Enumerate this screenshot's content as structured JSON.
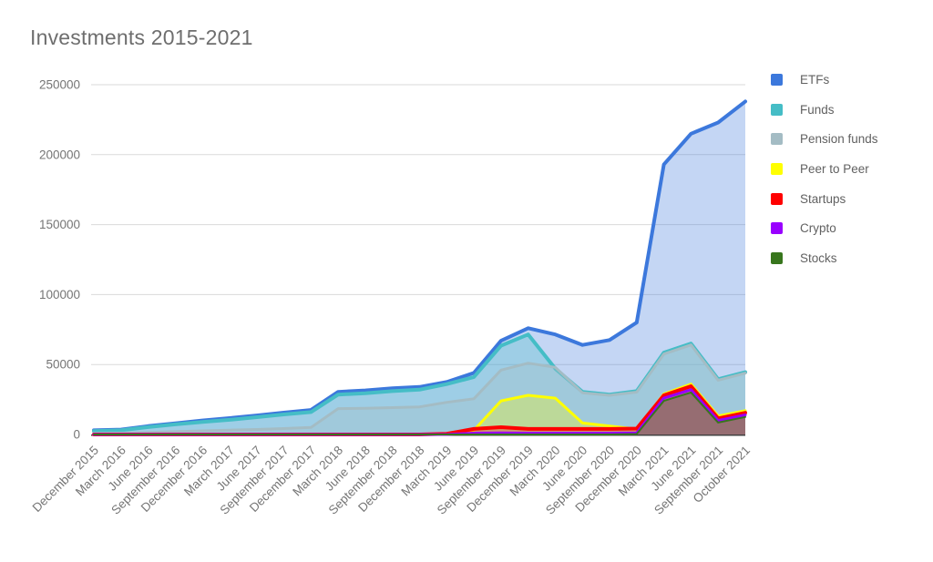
{
  "title": "Investments 2015-2021",
  "chart_data": {
    "type": "area",
    "title": "Investments 2015-2021",
    "grid": true,
    "legend_position": "right",
    "y_axis": {
      "min": 0,
      "max": 250000,
      "ticks": [
        "0",
        "50000",
        "100000",
        "150000",
        "200000",
        "250000"
      ]
    },
    "x_labels": [
      "December 2015",
      "March 2016",
      "June 2016",
      "September 2016",
      "December 2016",
      "March 2017",
      "June 2017",
      "September 2017",
      "December 2017",
      "March 2018",
      "June 2018",
      "September 2018",
      "December 2018",
      "March 2019",
      "June 2019",
      "September 2019",
      "December 2019",
      "March 2020",
      "June 2020",
      "September 2020",
      "December 2020",
      "March 2021",
      "June 2021",
      "September 2021",
      "October 2021"
    ],
    "series": [
      {
        "name": "ETFs",
        "color": "#3c78dc",
        "values": [
          3000,
          3500,
          6000,
          8000,
          10000,
          11700,
          13600,
          15600,
          17500,
          30500,
          31500,
          33000,
          34000,
          37500,
          44000,
          67000,
          76000,
          71500,
          64000,
          67500,
          80000,
          193000,
          215000,
          223000,
          238000
        ]
      },
      {
        "name": "Funds",
        "color": "#45bdc6",
        "values": [
          2500,
          3000,
          5300,
          7200,
          9000,
          10500,
          12400,
          14300,
          16000,
          28500,
          29500,
          31000,
          32000,
          36000,
          41000,
          63500,
          71500,
          47000,
          30500,
          28500,
          31000,
          58500,
          65000,
          39500,
          44500
        ]
      },
      {
        "name": "Pension funds",
        "color": "#a4bcc4",
        "values": [
          800,
          1000,
          1500,
          2000,
          2600,
          3100,
          3600,
          4200,
          5000,
          18500,
          18700,
          19200,
          19700,
          23000,
          25500,
          46000,
          51000,
          48000,
          29800,
          28000,
          30300,
          57500,
          64000,
          38800,
          43800
        ]
      },
      {
        "name": "Peer to Peer",
        "color": "#ffff00",
        "values": [
          0,
          0,
          0,
          0,
          0,
          0,
          0,
          0,
          0,
          0,
          0,
          0,
          0,
          300,
          3000,
          24000,
          28000,
          26000,
          8200,
          6000,
          3900,
          29000,
          36000,
          13200,
          17000
        ]
      },
      {
        "name": "Startups",
        "color": "#ff0000",
        "values": [
          0,
          0,
          0,
          0,
          0,
          0,
          0,
          0,
          0,
          0,
          0,
          0,
          0,
          500,
          4000,
          5200,
          4000,
          4000,
          4000,
          4000,
          4200,
          28000,
          34500,
          11500,
          15500
        ]
      },
      {
        "name": "Crypto",
        "color": "#9900ff",
        "values": [
          0,
          0,
          0,
          0,
          0,
          0,
          0,
          0,
          0,
          0,
          0,
          0,
          0,
          0,
          1000,
          1200,
          1000,
          1000,
          1000,
          1000,
          1200,
          26000,
          32000,
          10000,
          14000
        ]
      },
      {
        "name": "Stocks",
        "color": "#38761d",
        "values": [
          0,
          0,
          0,
          0,
          0,
          0,
          0,
          0,
          0,
          0,
          0,
          0,
          0,
          0,
          0,
          0,
          0,
          0,
          0,
          0,
          300,
          24000,
          30000,
          8500,
          12500
        ]
      }
    ],
    "style": {
      "grid_color": "#dadada",
      "axis_line_color": "#424242",
      "axis_label_color": "#757575",
      "fill_opacity": 0.3,
      "line_widths": [
        4,
        4,
        3,
        3,
        4,
        3,
        2
      ]
    }
  }
}
